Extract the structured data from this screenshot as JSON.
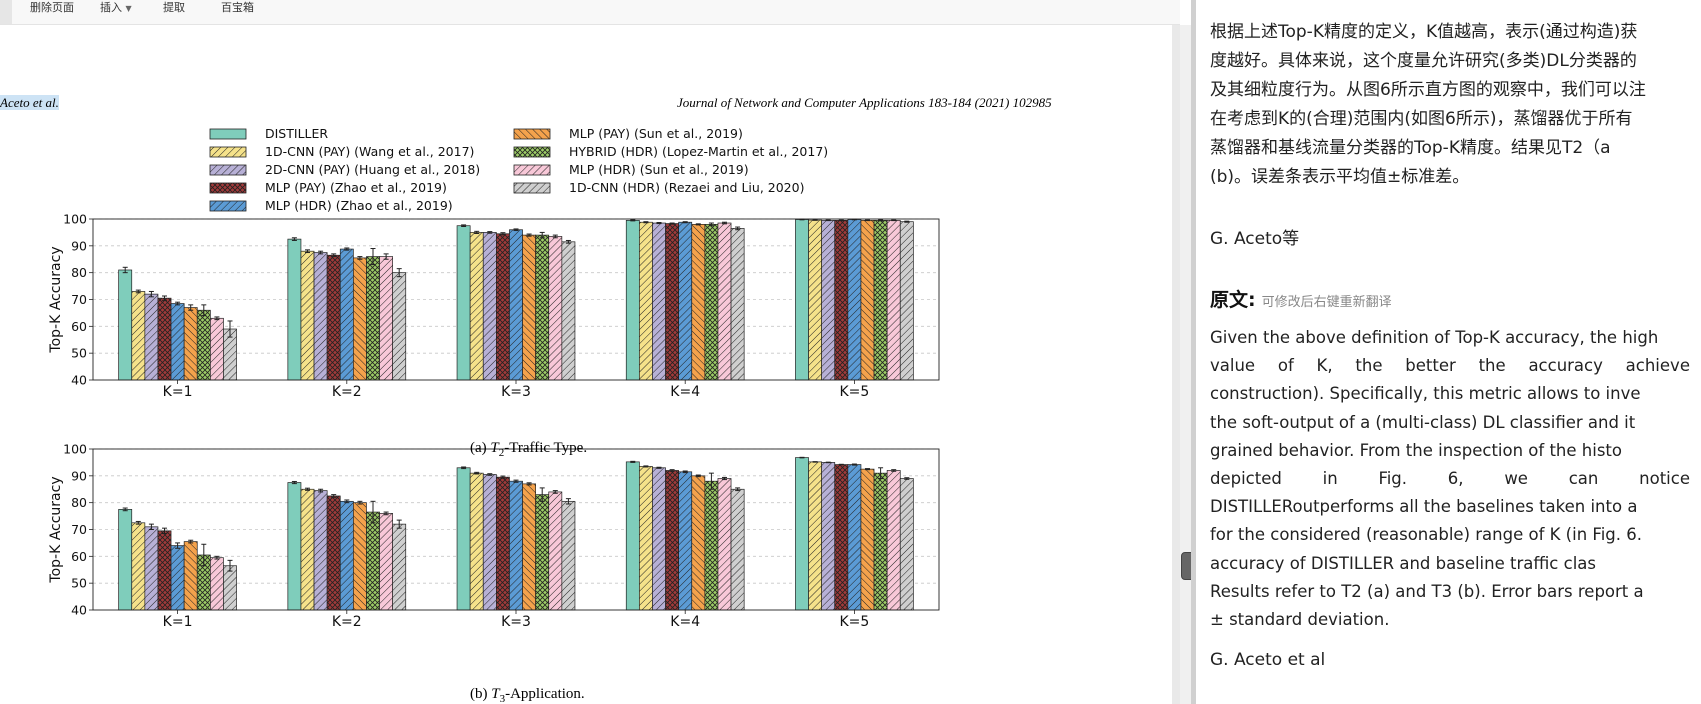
{
  "toolbar": {
    "items": [
      "删除页面",
      "插入",
      "提取",
      "百宝箱"
    ]
  },
  "pdf": {
    "running_author": "Aceto et al.",
    "running_journal": "Journal of Network and Computer Applications 183-184 (2021) 102985",
    "legend": [
      "DISTILLER",
      "1D-CNN (PAY) (Wang et al., 2017)",
      "2D-CNN (PAY) (Huang et al., 2018)",
      "MLP (PAY) (Zhao et al., 2019)",
      "MLP (HDR) (Zhao et al., 2019)",
      "MLP (PAY) (Sun et al., 2019)",
      "HYBRID (HDR) (Lopez-Martin et al., 2017)",
      "MLP (HDR) (Sun et al., 2019)",
      "1D-CNN (HDR) (Rezaei and Liu, 2020)"
    ],
    "caption_a": {
      "prefix": "(a) ",
      "t": "T",
      "sub": "2",
      "suffix": "-Traffic Type."
    },
    "caption_b": {
      "prefix": "(b) ",
      "t": "T",
      "sub": "3",
      "suffix": "-Application."
    }
  },
  "chart_data": [
    {
      "type": "bar",
      "title": "",
      "xlabel": "",
      "ylabel": "Top-K Accuracy",
      "ylim": [
        40,
        100
      ],
      "yticks": [
        40,
        50,
        60,
        70,
        80,
        90,
        100
      ],
      "grid": true,
      "categories": [
        "K=1",
        "K=2",
        "K=3",
        "K=4",
        "K=5"
      ],
      "series": [
        {
          "name": "DISTILLER",
          "values": [
            81,
            92.5,
            97.5,
            99.5,
            99.8
          ],
          "errors": [
            1,
            0.5,
            0.3,
            0.2,
            0.1
          ]
        },
        {
          "name": "1D-CNN (PAY) (Wang et al., 2017)",
          "values": [
            73,
            88,
            95,
            98.8,
            99.6
          ],
          "errors": [
            0.5,
            0.5,
            0.4,
            0.2,
            0.1
          ]
        },
        {
          "name": "2D-CNN (PAY) (Huang et al., 2018)",
          "values": [
            72,
            87.5,
            95,
            98.5,
            99.5
          ],
          "errors": [
            1,
            0.5,
            0.3,
            0.2,
            0.1
          ]
        },
        {
          "name": "MLP (PAY) (Zhao et al., 2019)",
          "values": [
            70.5,
            86.5,
            94.5,
            98.3,
            99.5
          ],
          "errors": [
            0.8,
            0.5,
            0.4,
            0.2,
            0.1
          ]
        },
        {
          "name": "MLP (HDR) (Zhao et al., 2019)",
          "values": [
            68.5,
            88.8,
            96,
            98.8,
            99.8
          ],
          "errors": [
            0.5,
            0.4,
            0.3,
            0.2,
            0.1
          ]
        },
        {
          "name": "MLP (PAY) (Sun et al., 2019)",
          "values": [
            67,
            85.5,
            94,
            98,
            99.5
          ],
          "errors": [
            1,
            0.5,
            0.4,
            0.2,
            0.1
          ]
        },
        {
          "name": "HYBRID (HDR) (Lopez-Martin et al., 2017)",
          "values": [
            66,
            86,
            94,
            98,
            99.5
          ],
          "errors": [
            2,
            3,
            1,
            0.5,
            0.2
          ]
        },
        {
          "name": "MLP (HDR) (Sun et al., 2019)",
          "values": [
            63,
            86,
            93.5,
            98.5,
            99.5
          ],
          "errors": [
            0.5,
            1,
            0.5,
            0.3,
            0.1
          ]
        },
        {
          "name": "1D-CNN (HDR) (Rezaei and Liu, 2020)",
          "values": [
            59,
            80,
            91.5,
            96.5,
            99
          ],
          "errors": [
            3,
            1.5,
            0.5,
            0.5,
            0.2
          ]
        }
      ]
    },
    {
      "type": "bar",
      "title": "",
      "xlabel": "",
      "ylabel": "Top-K Accuracy",
      "ylim": [
        40,
        100
      ],
      "yticks": [
        40,
        50,
        60,
        70,
        80,
        90,
        100
      ],
      "grid": true,
      "categories": [
        "K=1",
        "K=2",
        "K=3",
        "K=4",
        "K=5"
      ],
      "series": [
        {
          "name": "DISTILLER",
          "values": [
            77.5,
            87.5,
            93,
            95.2,
            96.8
          ],
          "errors": [
            0.5,
            0.4,
            0.3,
            0.2,
            0.1
          ]
        },
        {
          "name": "1D-CNN (PAY) (Wang et al., 2017)",
          "values": [
            72.5,
            85,
            91,
            93.5,
            95.2
          ],
          "errors": [
            0.5,
            0.4,
            0.3,
            0.2,
            0.1
          ]
        },
        {
          "name": "2D-CNN (PAY) (Huang et al., 2018)",
          "values": [
            71,
            84.5,
            90.5,
            93,
            95
          ],
          "errors": [
            1,
            0.5,
            0.3,
            0.2,
            0.1
          ]
        },
        {
          "name": "MLP (PAY) (Zhao et al., 2019)",
          "values": [
            69.5,
            82.5,
            89.5,
            92,
            94.2
          ],
          "errors": [
            1,
            0.5,
            0.4,
            0.3,
            0.1
          ]
        },
        {
          "name": "MLP (HDR) (Zhao et al., 2019)",
          "values": [
            64,
            80.5,
            88,
            91.5,
            94.2
          ],
          "errors": [
            1,
            0.5,
            0.4,
            0.3,
            0.2
          ]
        },
        {
          "name": "MLP (PAY) (Sun et al., 2019)",
          "values": [
            65.5,
            80,
            87,
            90,
            92.5
          ],
          "errors": [
            0.5,
            0.5,
            0.4,
            0.3,
            0.2
          ]
        },
        {
          "name": "HYBRID (HDR) (Lopez-Martin et al., 2017)",
          "values": [
            60.5,
            76.5,
            83,
            88,
            91
          ],
          "errors": [
            4,
            4,
            2.5,
            3,
            2
          ]
        },
        {
          "name": "MLP (HDR) (Sun et al., 2019)",
          "values": [
            59.5,
            76,
            84,
            89,
            92
          ],
          "errors": [
            0.5,
            0.5,
            0.5,
            0.4,
            0.3
          ]
        },
        {
          "name": "1D-CNN (HDR) (Rezaei and Liu, 2020)",
          "values": [
            56.5,
            72,
            80.5,
            85,
            89
          ],
          "errors": [
            2,
            1.5,
            1,
            0.5,
            0.3
          ]
        }
      ]
    }
  ],
  "panel": {
    "zh_lines": [
      "根据上述Top-K精度的定义，K值越高，表示(通过构造)获",
      "度越好。具体来说，这个度量允许研究(多类)DL分类器的",
      "及其细粒度行为。从图6所示直方图的观察中，我们可以注",
      "在考虑到K的(合理)范围内(如图6所示)，蒸馏器优于所有",
      "蒸馏器和基线流量分类器的Top-K精度。结果见T2（a",
      "(b)。误差条表示平均值±标准差。"
    ],
    "zh_signature": "G. Aceto等",
    "orig_title": "原文:",
    "orig_hint": "可修改后右键重新翻译",
    "en_lines": [
      "Given the above definition of Top-K accuracy, the high",
      "value of K, the better the accuracy achieve",
      "construction). Specifically, this metric allows to inve",
      "the soft-output of a (multi-class) DL classifier and it",
      "grained behavior. From the inspection of the histo",
      "depicted in Fig. 6, we can notice",
      "DISTILLERoutperforms all the baselines taken into a",
      "for the considered (reasonable) range of K (in Fig. 6.",
      "accuracy of DISTILLER and baseline traffic clas",
      "Results refer to T2 (a) and T3 (b). Error bars report a",
      "± standard deviation."
    ],
    "en_signature": "G. Aceto et al"
  },
  "series_styles": [
    {
      "fill": "#7fcdbb",
      "hatch": "none"
    },
    {
      "fill": "#f5e28a",
      "hatch": "diag"
    },
    {
      "fill": "#b7b0d6",
      "hatch": "diag"
    },
    {
      "fill": "#a13a3a",
      "hatch": "cross"
    },
    {
      "fill": "#5b9bd5",
      "hatch": "diag"
    },
    {
      "fill": "#f4a24c",
      "hatch": "back"
    },
    {
      "fill": "#9ccc65",
      "hatch": "cross"
    },
    {
      "fill": "#f8c8d8",
      "hatch": "diag"
    },
    {
      "fill": "#cfcfcf",
      "hatch": "diag"
    }
  ]
}
